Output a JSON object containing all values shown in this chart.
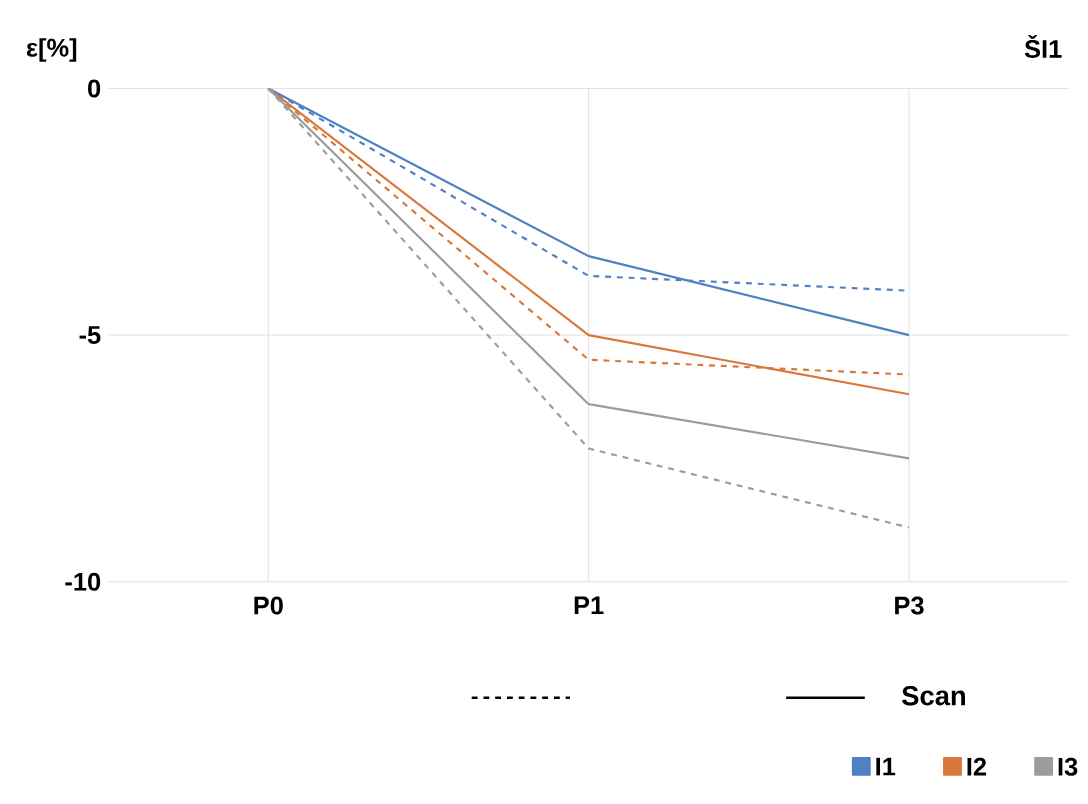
{
  "chart_data": {
    "type": "line",
    "title": "ŠI1",
    "ylabel": "ε[%]",
    "categories": [
      "P0",
      "P1",
      "P3"
    ],
    "series": [
      {
        "name": "I1",
        "color": "#4f81c4",
        "values": [
          0,
          -3.4,
          -5.0
        ],
        "line_style": "solid"
      },
      {
        "color": "#4f81c4",
        "values": [
          0,
          -3.8,
          -4.1
        ],
        "line_style": "dashed"
      },
      {
        "name": "I2",
        "color": "#d9773a",
        "values": [
          0,
          -5.0,
          -6.2
        ],
        "line_style": "solid"
      },
      {
        "color": "#d9773a",
        "values": [
          0,
          -5.5,
          -5.8
        ],
        "line_style": "dashed"
      },
      {
        "name": "I3",
        "color": "#9c9c9c",
        "values": [
          0,
          -6.4,
          -7.5
        ],
        "line_style": "solid"
      },
      {
        "color": "#9c9c9c",
        "values": [
          0,
          -7.3,
          -8.9
        ],
        "line_style": "dashed"
      }
    ],
    "ylim": [
      -10,
      0
    ],
    "yticks": [
      -10,
      -5,
      0
    ],
    "grid": true,
    "legend": "bottom right",
    "marker": "none",
    "annotations": [
      "Scan"
    ]
  }
}
